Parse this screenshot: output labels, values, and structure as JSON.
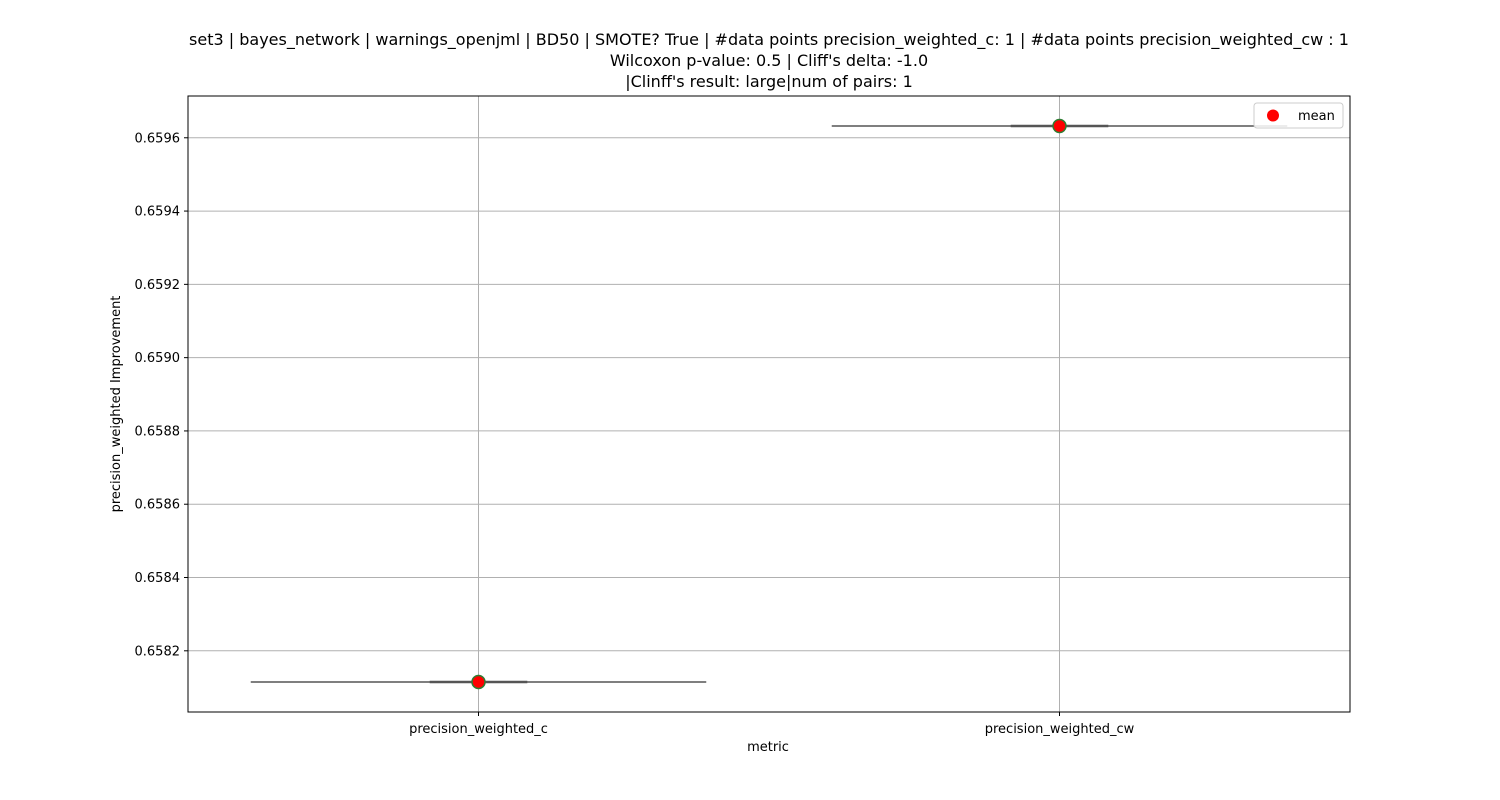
{
  "chart_data": {
    "type": "box",
    "title_lines": [
      "set3 | bayes_network | warnings_openjml | BD50 | SMOTE? True | #data points precision_weighted_c: 1 | #data points precision_weighted_cw : 1",
      "Wilcoxon p-value: 0.5 | Cliff's delta: -1.0",
      "|Clinff's result: large|num of pairs: 1"
    ],
    "xlabel": "metric",
    "ylabel": "precision_weighted Improvement",
    "categories": [
      "precision_weighted_c",
      "precision_weighted_cw"
    ],
    "values": [
      0.658115,
      0.659632
    ],
    "ylim": [
      0.658033,
      0.659714
    ],
    "yticks": [
      0.6582,
      0.6584,
      0.6586,
      0.6588,
      0.659,
      0.6592,
      0.6594,
      0.6596
    ],
    "ytick_labels": [
      "0.6582",
      "0.6584",
      "0.6586",
      "0.6588",
      "0.6590",
      "0.6592",
      "0.6594",
      "0.6596"
    ],
    "grid": true,
    "legend": {
      "position": "upper-right",
      "entries": [
        {
          "label": "mean",
          "marker": "circle",
          "color": "#ff0000"
        }
      ]
    },
    "colors": {
      "mean_fill": "#ff0000",
      "mean_edge": "#2e7d32",
      "box_line": "#555555",
      "grid": "#b0b0b0"
    }
  }
}
